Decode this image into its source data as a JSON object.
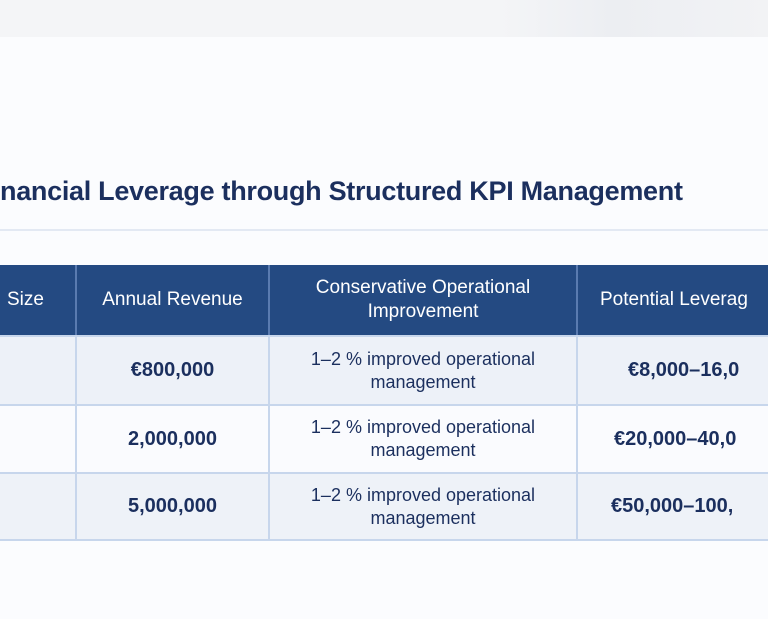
{
  "title": "nancial Leverage through Structured KPI Management",
  "colors": {
    "header_bg": "#244a82",
    "title": "#1b2f5e",
    "row_alt": "#edf1f8",
    "border": "#c7d6ec"
  },
  "table": {
    "headers": [
      "Size",
      "Annual Revenue",
      "Conservative Operational Improvement",
      "Potential Leverag"
    ],
    "rows": [
      {
        "size": "",
        "revenue": "€800,000",
        "improvement": "1–2 % improved operational management",
        "leverage": "€8,000–16,0"
      },
      {
        "size": "",
        "revenue": "2,000,000",
        "improvement": "1–2 % improved operational management",
        "leverage": "€20,000–40,0"
      },
      {
        "size": "",
        "revenue": "5,000,000",
        "improvement": "1–2 % improved operational management",
        "leverage": "€50,000–100,"
      }
    ]
  }
}
